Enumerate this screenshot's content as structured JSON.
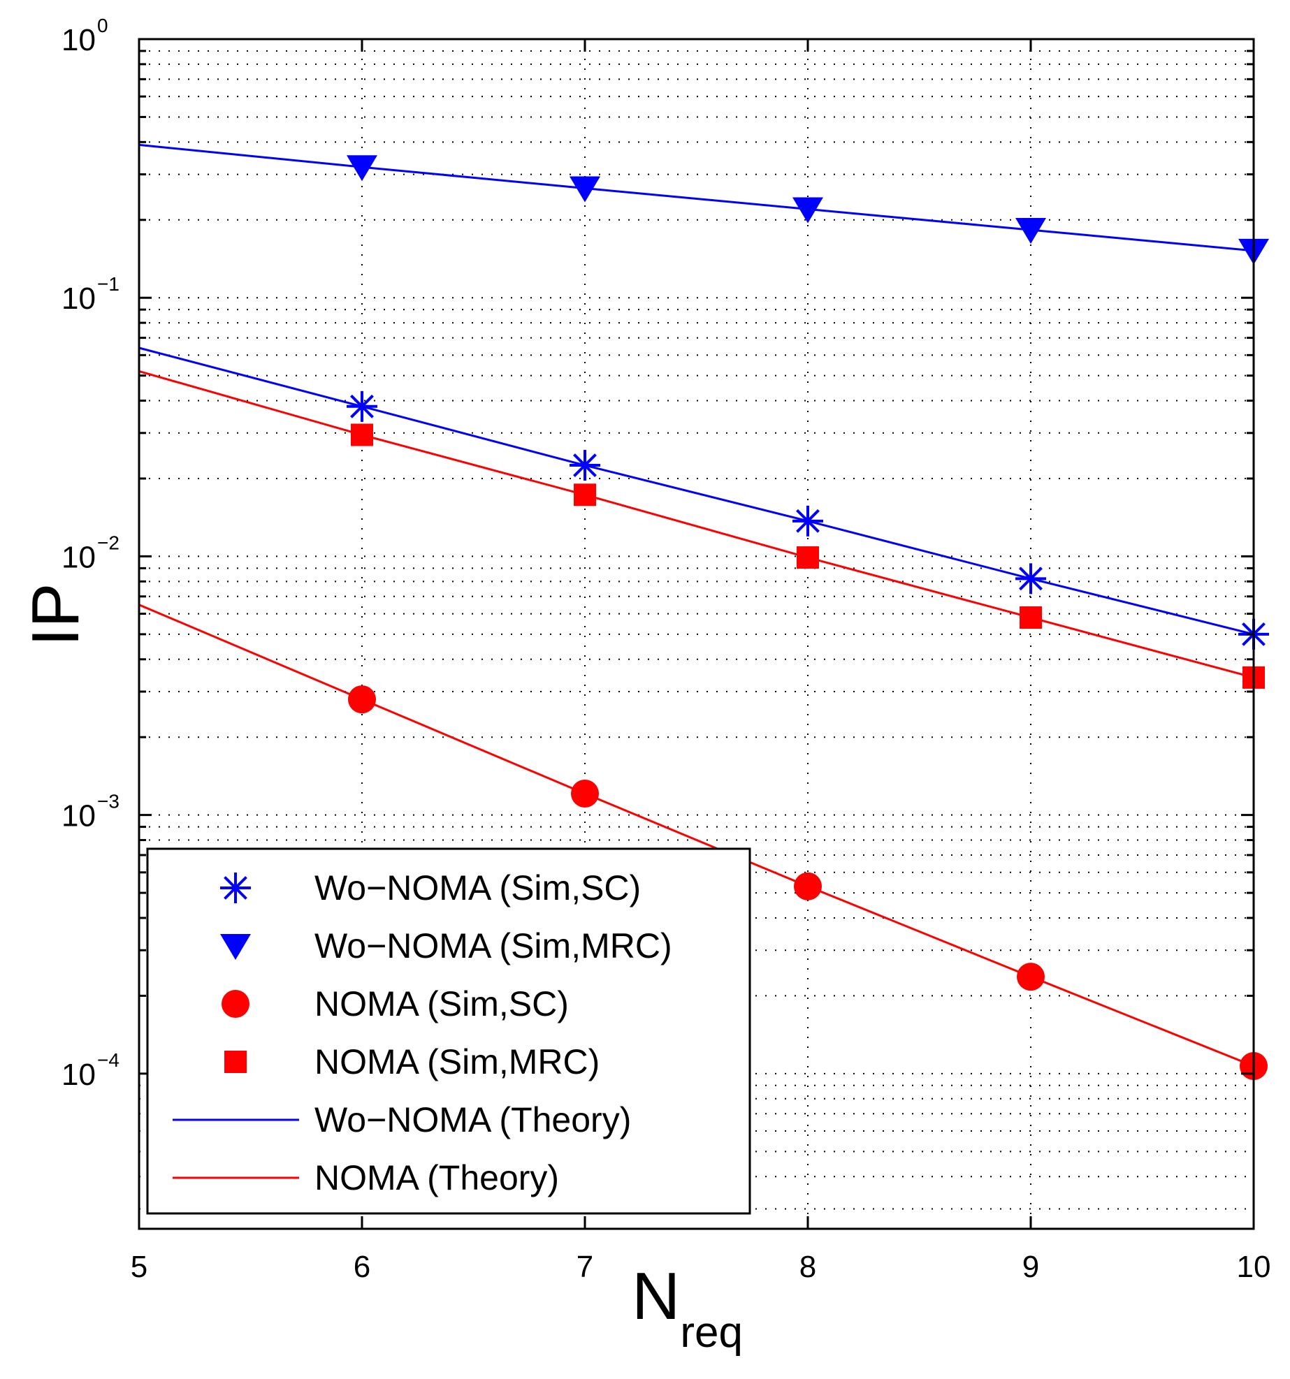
{
  "chart_data": {
    "type": "line",
    "title": "",
    "xlabel": "N",
    "xlabel_sub": "req",
    "ylabel": "IP",
    "xlim": [
      5,
      10
    ],
    "ylim_log10": [
      -4.6,
      0
    ],
    "yscale": "log",
    "grid": true,
    "legend_position": "lower-left",
    "x_ticks": [
      "5",
      "6",
      "7",
      "8",
      "9",
      "10"
    ],
    "y_ticks": [
      {
        "base": "10",
        "exp": "0",
        "log": 0
      },
      {
        "base": "10",
        "exp": "−1",
        "log": -1
      },
      {
        "base": "10",
        "exp": "−2",
        "log": -2
      },
      {
        "base": "10",
        "exp": "−3",
        "log": -3
      },
      {
        "base": "10",
        "exp": "−4",
        "log": -4
      }
    ],
    "series": [
      {
        "name": "Wo−NOMA (Sim,SC)",
        "kind": "marker",
        "marker": "star",
        "color": "#0000ff",
        "x": [
          6,
          7,
          8,
          9,
          10
        ],
        "y": [
          0.038,
          0.0225,
          0.0137,
          0.0082,
          0.005
        ]
      },
      {
        "name": "Wo−NOMA (Sim,MRC)",
        "kind": "marker",
        "marker": "triangle-down",
        "color": "#0000ff",
        "x": [
          6,
          7,
          8,
          9,
          10
        ],
        "y": [
          0.32,
          0.265,
          0.22,
          0.183,
          0.152
        ]
      },
      {
        "name": "NOMA (Sim,SC)",
        "kind": "marker",
        "marker": "circle",
        "color": "#ff0000",
        "x": [
          6,
          7,
          8,
          9,
          10
        ],
        "y": [
          0.0028,
          0.00121,
          0.00053,
          0.000237,
          0.000107
        ]
      },
      {
        "name": "NOMA (Sim,MRC)",
        "kind": "marker",
        "marker": "square",
        "color": "#ff0000",
        "x": [
          6,
          7,
          8,
          9,
          10
        ],
        "y": [
          0.0295,
          0.0173,
          0.0099,
          0.0058,
          0.0034
        ]
      },
      {
        "name": "Wo−NOMA (Theory)",
        "kind": "line",
        "color": "#0000ff",
        "x": [
          5,
          6,
          7,
          8,
          9,
          10
        ],
        "y": [
          0.064,
          0.038,
          0.0225,
          0.0137,
          0.0082,
          0.005
        ],
        "x2": [
          5,
          6,
          7,
          8,
          9,
          10
        ],
        "y2": [
          0.39,
          0.32,
          0.265,
          0.22,
          0.183,
          0.152
        ]
      },
      {
        "name": "NOMA (Theory)",
        "kind": "line",
        "color": "#ff0000",
        "x": [
          5,
          6,
          7,
          8,
          9,
          10
        ],
        "y": [
          0.0065,
          0.0028,
          0.00121,
          0.00053,
          0.000237,
          0.000107
        ],
        "x2": [
          5,
          6,
          7,
          8,
          9,
          10
        ],
        "y2": [
          0.052,
          0.0295,
          0.0173,
          0.0099,
          0.0058,
          0.0034
        ]
      }
    ]
  }
}
